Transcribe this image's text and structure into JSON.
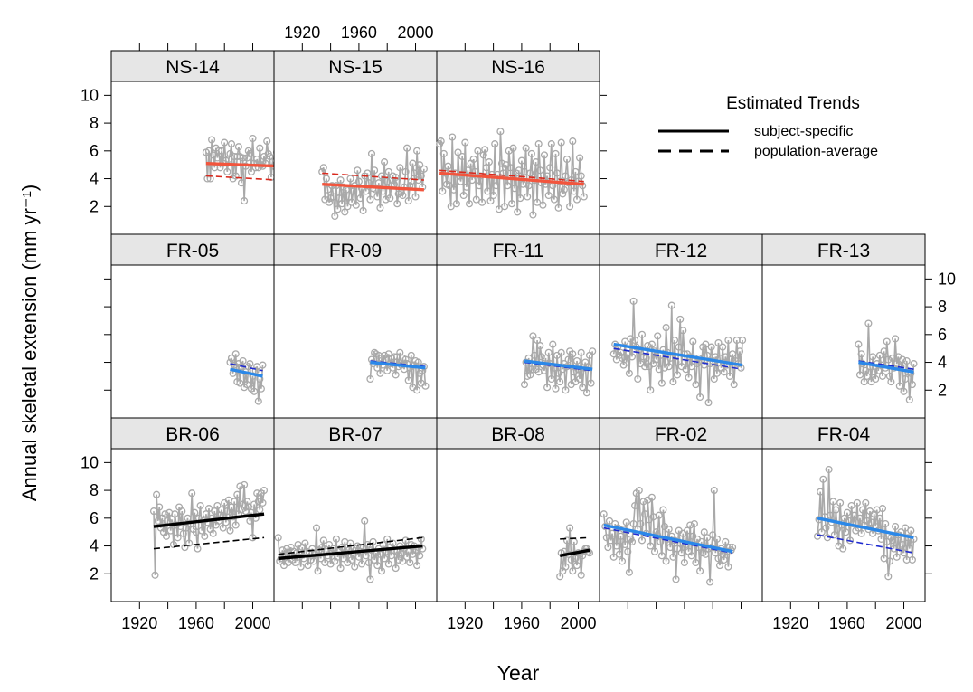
{
  "chart_data": {
    "type": "line",
    "title": "",
    "xlabel": "Year",
    "ylabel": "Annual skeletal extension (mm yr⁻¹)",
    "xlim": [
      1900,
      2015
    ],
    "ylim": [
      0,
      11
    ],
    "x_ticks": [
      "1920",
      "1960",
      "2000"
    ],
    "y_ticks": [
      "2",
      "4",
      "6",
      "8",
      "10"
    ],
    "legend": {
      "title": "Estimated Trends",
      "position": "top-right",
      "entries": [
        {
          "label": "subject-specific",
          "style": "solid"
        },
        {
          "label": "population-average",
          "style": "dashed"
        }
      ]
    },
    "colors": {
      "NS": "#f2553d",
      "FR": "#2b88e8",
      "BR": "#000000",
      "FR_pop": "#1f2bd0",
      "NS_pop": "#d9281c",
      "series_points": "#a9a9a9",
      "strip": "#e6e6e6"
    },
    "panels": [
      {
        "name": "NS-14",
        "row": 0,
        "col": 0,
        "group": "NS",
        "x_start": 1967,
        "values": [
          5.9,
          4.0,
          6.0,
          4.0,
          6.8,
          5.7,
          4.8,
          6.2,
          5.5,
          6.0,
          4.8,
          6.0,
          5.1,
          6.6,
          5.3,
          4.5,
          5.4,
          5.8,
          6.5,
          4.0,
          5.6,
          4.2,
          5.6,
          6.3,
          5.6,
          3.7,
          5.5,
          2.4,
          4.9,
          5.5,
          6.0,
          5.8,
          4.5,
          6.9,
          5.1,
          4.8,
          5.4,
          4.8,
          6.2,
          5.0,
          4.9,
          5.6,
          5.1,
          6.7,
          5.8,
          5.6,
          4.1,
          5.2,
          4.9,
          5.3,
          5.9,
          6.8
        ],
        "trend_ss": [
          5.1,
          4.9
        ],
        "trend_pa": [
          4.2,
          3.9
        ]
      },
      {
        "name": "NS-15",
        "row": 0,
        "col": 1,
        "group": "NS",
        "x_start": 1934,
        "values": [
          4.5,
          4.8,
          2.5,
          4.0,
          3.2,
          2.3,
          2.6,
          3.5,
          2.7,
          1.3,
          3.5,
          1.8,
          2.6,
          3.9,
          2.2,
          3.4,
          1.6,
          3.2,
          2.0,
          2.7,
          4.0,
          2.3,
          3.1,
          3.5,
          2.1,
          4.6,
          3.8,
          2.6,
          3.3,
          1.7,
          4.2,
          3.1,
          4.4,
          3.7,
          2.5,
          5.8,
          3.3,
          4.6,
          3.2,
          2.7,
          3.7,
          1.9,
          4.2,
          3.1,
          5.2,
          2.5,
          3.8,
          4.5,
          2.6,
          3.5,
          4.2,
          3.6,
          4.1,
          2.2,
          2.9,
          4.8,
          3.0,
          2.8,
          3.4,
          4.5,
          6.2,
          2.4,
          3.5,
          3.8,
          5.1,
          4.4,
          2.7,
          6.0,
          3.9,
          5.0,
          4.2,
          3.4,
          4.7
        ],
        "trend_ss": [
          3.6,
          3.2
        ],
        "trend_pa": [
          4.4,
          3.9
        ]
      },
      {
        "name": "NS-16",
        "row": 0,
        "col": 2,
        "group": "NS",
        "x_start": 1902,
        "values": [
          6.5,
          6.7,
          3.1,
          5.8,
          4.4,
          3.6,
          4.9,
          3.5,
          2.0,
          7.0,
          3.2,
          4.4,
          2.2,
          5.9,
          4.2,
          3.8,
          5.6,
          2.8,
          6.6,
          3.4,
          4.6,
          2.2,
          5.1,
          3.9,
          5.4,
          4.5,
          2.5,
          6.0,
          3.5,
          4.2,
          2.3,
          5.7,
          6.1,
          4.8,
          3.1,
          5.2,
          2.4,
          4.3,
          2.8,
          6.5,
          3.5,
          4.3,
          1.8,
          7.4,
          5.1,
          4.4,
          2.0,
          5.0,
          3.5,
          6.0,
          4.8,
          2.2,
          6.2,
          3.3,
          4.4,
          1.6,
          4.6,
          2.6,
          5.3,
          3.6,
          4.5,
          6.2,
          2.7,
          3.5,
          4.4,
          5.8,
          1.4,
          3.9,
          5.2,
          2.3,
          6.5,
          4.6,
          3.7,
          2.1,
          5.7,
          3.6,
          4.2,
          2.8,
          4.8,
          6.5,
          3.5,
          2.5,
          5.8,
          4.4,
          1.9,
          3.8,
          6.6,
          2.9,
          3.2,
          4.2,
          5.4,
          3.7,
          2.0,
          3.9,
          6.7,
          3.1,
          4.5,
          2.5,
          3.8,
          5.5,
          4.2,
          3.5,
          2.7
        ],
        "trend_ss": [
          4.4,
          3.6
        ],
        "trend_pa": [
          4.6,
          3.8
        ]
      },
      {
        "name": "FR-05",
        "row": 1,
        "col": 0,
        "group": "FR",
        "x_start": 1984,
        "values": [
          4.0,
          4.3,
          3.2,
          3.8,
          4.6,
          2.6,
          3.9,
          2.5,
          3.7,
          4.1,
          2.2,
          3.3,
          2.4,
          3.7,
          3.9,
          2.1,
          3.0,
          1.9,
          3.4,
          3.7,
          1.2,
          2.8,
          2.1,
          3.8
        ],
        "trend_ss": [
          3.5,
          3.0
        ],
        "trend_pa": [
          3.9,
          3.4
        ]
      },
      {
        "name": "FR-09",
        "row": 1,
        "col": 1,
        "group": "FR",
        "x_start": 1968,
        "values": [
          2.8,
          4.2,
          3.9,
          4.7,
          4.6,
          3.6,
          4.5,
          3.2,
          4.3,
          3.8,
          4.5,
          4.2,
          3.4,
          4.6,
          3.9,
          4.3,
          3.6,
          4.4,
          3.1,
          4.4,
          3.7,
          4.7,
          3.8,
          4.3,
          3.5,
          4.2,
          3.9,
          2.7,
          3.6,
          4.5,
          2.2,
          3.8,
          4.1,
          2.0,
          4.0,
          3.2,
          2.5,
          3.4,
          3.7,
          2.3
        ],
        "trend_ss": [
          4.0,
          3.6
        ],
        "trend_pa": [
          4.1,
          3.7
        ]
      },
      {
        "name": "FR-11",
        "row": 1,
        "col": 2,
        "group": "FR",
        "x_start": 1962,
        "values": [
          2.4,
          4.0,
          3.0,
          4.3,
          3.1,
          3.5,
          5.9,
          4.5,
          3.5,
          5.6,
          3.3,
          5.2,
          4.4,
          3.8,
          3.4,
          4.3,
          2.2,
          4.7,
          3.9,
          2.8,
          5.3,
          3.6,
          2.1,
          4.5,
          3.2,
          2.6,
          4.7,
          3.5,
          3.9,
          2.0,
          3.7,
          4.2,
          4.8,
          2.4,
          4.6,
          3.3,
          2.6,
          4.1,
          3.5,
          2.8,
          4.7,
          2.2,
          3.6,
          4.0,
          1.8,
          3.7,
          4.5,
          2.5,
          4.8
        ],
        "trend_ss": [
          4.1,
          3.5
        ],
        "trend_pa": [
          4.0,
          3.4
        ]
      },
      {
        "name": "FR-12",
        "row": 1,
        "col": 3,
        "group": "FR",
        "x_start": 1910,
        "values": [
          4.6,
          5.3,
          4.2,
          5.1,
          4.5,
          4.7,
          4.3,
          3.8,
          5.5,
          4.0,
          4.6,
          3.2,
          5.7,
          4.4,
          8.4,
          5.6,
          5.1,
          2.8,
          4.9,
          3.9,
          6.0,
          4.4,
          3.7,
          4.3,
          5.2,
          3.7,
          2.0,
          5.3,
          3.9,
          4.8,
          4.2,
          5.9,
          3.5,
          4.5,
          2.5,
          4.9,
          3.6,
          6.5,
          4.7,
          3.7,
          4.3,
          8.1,
          2.6,
          5.6,
          4.0,
          3.1,
          5.1,
          7.1,
          3.7,
          6.3,
          4.6,
          3.5,
          4.6,
          2.9,
          4.4,
          3.7,
          5.5,
          4.1,
          2.4,
          3.9,
          4.3,
          1.5,
          4.0,
          5.1,
          3.8,
          5.3,
          4.5,
          1.1,
          3.9,
          5.1,
          4.1,
          2.8,
          4.4,
          3.2,
          5.4,
          4.3,
          3.6,
          5.1,
          3.3,
          4.4,
          3.8,
          5.6,
          3.0,
          4.2,
          4.6,
          2.4,
          4.1,
          5.6,
          3.9,
          4.8,
          3.6,
          5.6
        ],
        "trend_ss": [
          5.3,
          3.8
        ],
        "trend_pa": [
          5.0,
          3.5
        ]
      },
      {
        "name": "FR-13",
        "row": 1,
        "col": 4,
        "group": "FR",
        "x_start": 1968,
        "values": [
          5.3,
          3.1,
          4.6,
          3.9,
          2.6,
          3.4,
          3.0,
          6.8,
          3.7,
          2.6,
          4.4,
          3.3,
          2.8,
          3.9,
          3.4,
          4.5,
          3.8,
          3.0,
          4.8,
          3.6,
          5.5,
          4.2,
          3.0,
          2.6,
          4.3,
          3.6,
          5.7,
          3.9,
          4.4,
          2.3,
          3.7,
          4.2,
          1.9,
          2.8,
          4.1,
          3.3,
          1.3,
          3.2,
          2.4,
          3.9
        ],
        "trend_ss": [
          4.0,
          3.3
        ],
        "trend_pa": [
          4.1,
          3.5
        ]
      },
      {
        "name": "BR-06",
        "row": 2,
        "col": 0,
        "group": "BR",
        "x_start": 1930,
        "values": [
          6.5,
          1.9,
          7.7,
          5.8,
          6.8,
          5.3,
          6.0,
          5.0,
          6.3,
          4.7,
          5.8,
          6.4,
          5.1,
          5.9,
          4.1,
          6.3,
          5.5,
          4.6,
          6.8,
          5.4,
          6.5,
          4.9,
          3.9,
          5.3,
          6.0,
          4.2,
          5.6,
          7.8,
          5.2,
          6.4,
          5.0,
          3.8,
          6.0,
          6.9,
          5.1,
          5.8,
          4.7,
          6.3,
          5.7,
          6.7,
          5.2,
          6.0,
          4.9,
          6.5,
          5.5,
          6.9,
          5.8,
          6.2,
          6.6,
          5.3,
          7.1,
          5.7,
          6.5,
          7.3,
          5.1,
          6.8,
          6.1,
          7.2,
          5.5,
          7.7,
          6.3,
          8.3,
          6.6,
          7.0,
          8.4,
          6.5,
          7.2,
          6.8,
          5.8,
          6.4,
          4.6,
          7.0,
          6.0,
          7.8,
          7.2,
          6.6,
          7.8,
          7.1,
          8.0
        ],
        "trend_ss": [
          5.4,
          6.3
        ],
        "trend_pa": [
          3.8,
          4.6
        ]
      },
      {
        "name": "BR-07",
        "row": 2,
        "col": 1,
        "group": "BR",
        "x_start": 1903,
        "values": [
          4.6,
          2.9,
          3.1,
          3.7,
          2.6,
          3.4,
          3.8,
          2.8,
          3.3,
          3.9,
          3.0,
          3.6,
          2.8,
          3.5,
          4.1,
          3.2,
          2.5,
          3.9,
          3.1,
          4.2,
          3.6,
          2.6,
          3.5,
          3.0,
          3.8,
          2.9,
          3.4,
          5.3,
          2.2,
          3.7,
          3.1,
          3.9,
          4.4,
          2.8,
          3.6,
          3.3,
          4.1,
          2.7,
          3.5,
          3.8,
          2.9,
          4.5,
          3.2,
          3.6,
          2.4,
          3.9,
          3.1,
          4.3,
          3.5,
          2.8,
          3.7,
          4.2,
          3.0,
          3.4,
          2.5,
          3.8,
          4.0,
          3.2,
          3.6,
          2.7,
          3.9,
          5.8,
          3.3,
          4.1,
          2.8,
          1.6,
          3.7,
          4.3,
          3.0,
          3.5,
          2.6,
          3.8,
          3.4,
          2.2,
          4.1,
          3.1,
          3.6,
          4.5,
          2.7,
          3.9,
          3.3,
          4.2,
          3.7,
          2.4,
          3.6,
          3.0,
          4.0,
          3.5,
          2.9,
          3.8,
          4.4,
          3.2,
          3.6,
          2.8,
          4.1,
          3.4,
          4.0,
          3.7,
          2.6,
          3.9,
          3.3,
          4.5,
          3.8
        ],
        "trend_ss": [
          3.1,
          4.0
        ],
        "trend_pa": [
          3.4,
          4.6
        ]
      },
      {
        "name": "BR-08",
        "row": 2,
        "col": 2,
        "group": "BR",
        "x_start": 1987,
        "values": [
          1.8,
          3.5,
          2.2,
          3.6,
          2.5,
          4.4,
          3.4,
          5.3,
          3.0,
          2.2,
          4.3,
          3.1,
          2.6,
          3.5,
          3.4,
          1.9,
          3.3,
          3.6,
          3.8,
          3.8,
          3.6,
          3.5
        ],
        "trend_ss": [
          3.3,
          3.7
        ],
        "trend_pa": [
          4.5,
          4.6
        ]
      },
      {
        "name": "FR-02",
        "row": 2,
        "col": 3,
        "group": "FR",
        "x_start": 1903,
        "values": [
          6.3,
          5.4,
          4.6,
          3.9,
          5.8,
          4.4,
          4.9,
          3.2,
          5.6,
          4.0,
          5.3,
          3.4,
          4.7,
          2.9,
          5.2,
          4.1,
          5.7,
          3.6,
          2.1,
          4.5,
          4.3,
          5.6,
          6.9,
          7.8,
          5.2,
          8.0,
          5.6,
          4.4,
          7.2,
          6.3,
          4.9,
          7.3,
          5.9,
          4.0,
          7.5,
          6.1,
          3.6,
          5.0,
          4.8,
          6.2,
          4.3,
          3.3,
          6.6,
          5.4,
          2.9,
          4.5,
          5.2,
          3.9,
          4.7,
          3.2,
          4.4,
          1.6,
          3.8,
          5.1,
          4.2,
          3.5,
          4.9,
          2.8,
          4.1,
          5.1,
          3.6,
          5.5,
          3.3,
          4.7,
          5.6,
          2.8,
          4.5,
          3.9,
          2.2,
          4.3,
          3.5,
          5.0,
          3.4,
          4.6,
          3.8,
          1.4,
          3.9,
          4.8,
          8.0,
          3.5,
          4.5,
          3.1,
          2.6,
          3.8,
          3.4,
          3.0,
          4.3,
          3.6,
          2.5,
          3.9,
          3.7,
          3.9
        ],
        "trend_ss": [
          5.5,
          3.6
        ],
        "trend_pa": [
          5.3,
          3.5
        ]
      },
      {
        "name": "FR-04",
        "row": 2,
        "col": 4,
        "group": "FR",
        "x_start": 1939,
        "values": [
          4.7,
          5.9,
          7.9,
          5.0,
          8.8,
          6.1,
          5.3,
          4.6,
          9.5,
          6.2,
          5.7,
          7.2,
          4.8,
          6.6,
          5.2,
          4.0,
          7.1,
          5.5,
          3.8,
          6.0,
          5.0,
          6.4,
          5.8,
          4.4,
          6.9,
          5.6,
          6.2,
          5.1,
          7.1,
          5.3,
          6.0,
          4.9,
          6.6,
          5.5,
          7.1,
          5.8,
          5.2,
          6.5,
          5.7,
          4.9,
          6.3,
          5.4,
          6.6,
          5.1,
          6.0,
          4.5,
          6.7,
          3.1,
          5.6,
          4.3,
          1.8,
          2.9,
          4.6,
          4.4,
          3.8,
          5.4,
          3.2,
          4.8,
          3.6,
          5.0,
          4.1,
          3.5,
          5.3,
          3.0,
          4.6,
          3.8,
          5.1,
          3.0,
          4.5
        ],
        "trend_ss": [
          6.0,
          4.6
        ],
        "trend_pa": [
          4.8,
          3.5
        ]
      }
    ]
  }
}
